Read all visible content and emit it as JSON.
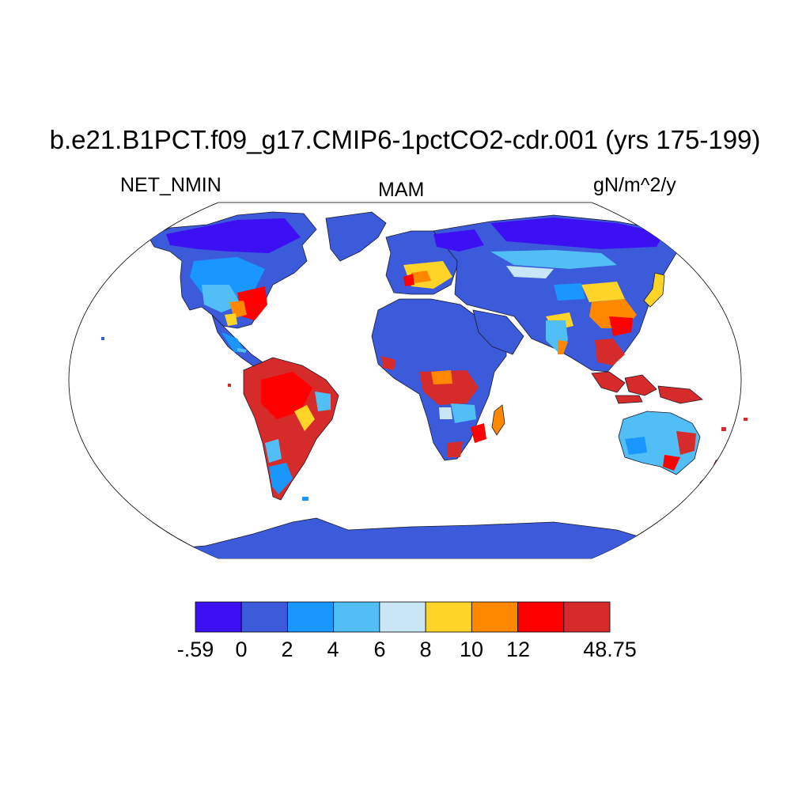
{
  "title": "b.e21.B1PCT.f09_g17.CMIP6-1pctCO2-cdr.001 (yrs 175-199)",
  "variable": "NET_NMIN",
  "season": "MAM",
  "units": "gN/m^2/y",
  "colorbar": {
    "labels": [
      "-.59",
      "0",
      "2",
      "4",
      "6",
      "8",
      "10",
      "12",
      "48.75"
    ],
    "colors": [
      "#3c10f2",
      "#3b5bdb",
      "#1a97ff",
      "#51bff5",
      "#c9e6f7",
      "#ffd428",
      "#ff8800",
      "#ff0000",
      "#d62b2b"
    ]
  },
  "map_legend": {
    "ocean": "#ffffff",
    "land_default": "#3b5bdb"
  }
}
